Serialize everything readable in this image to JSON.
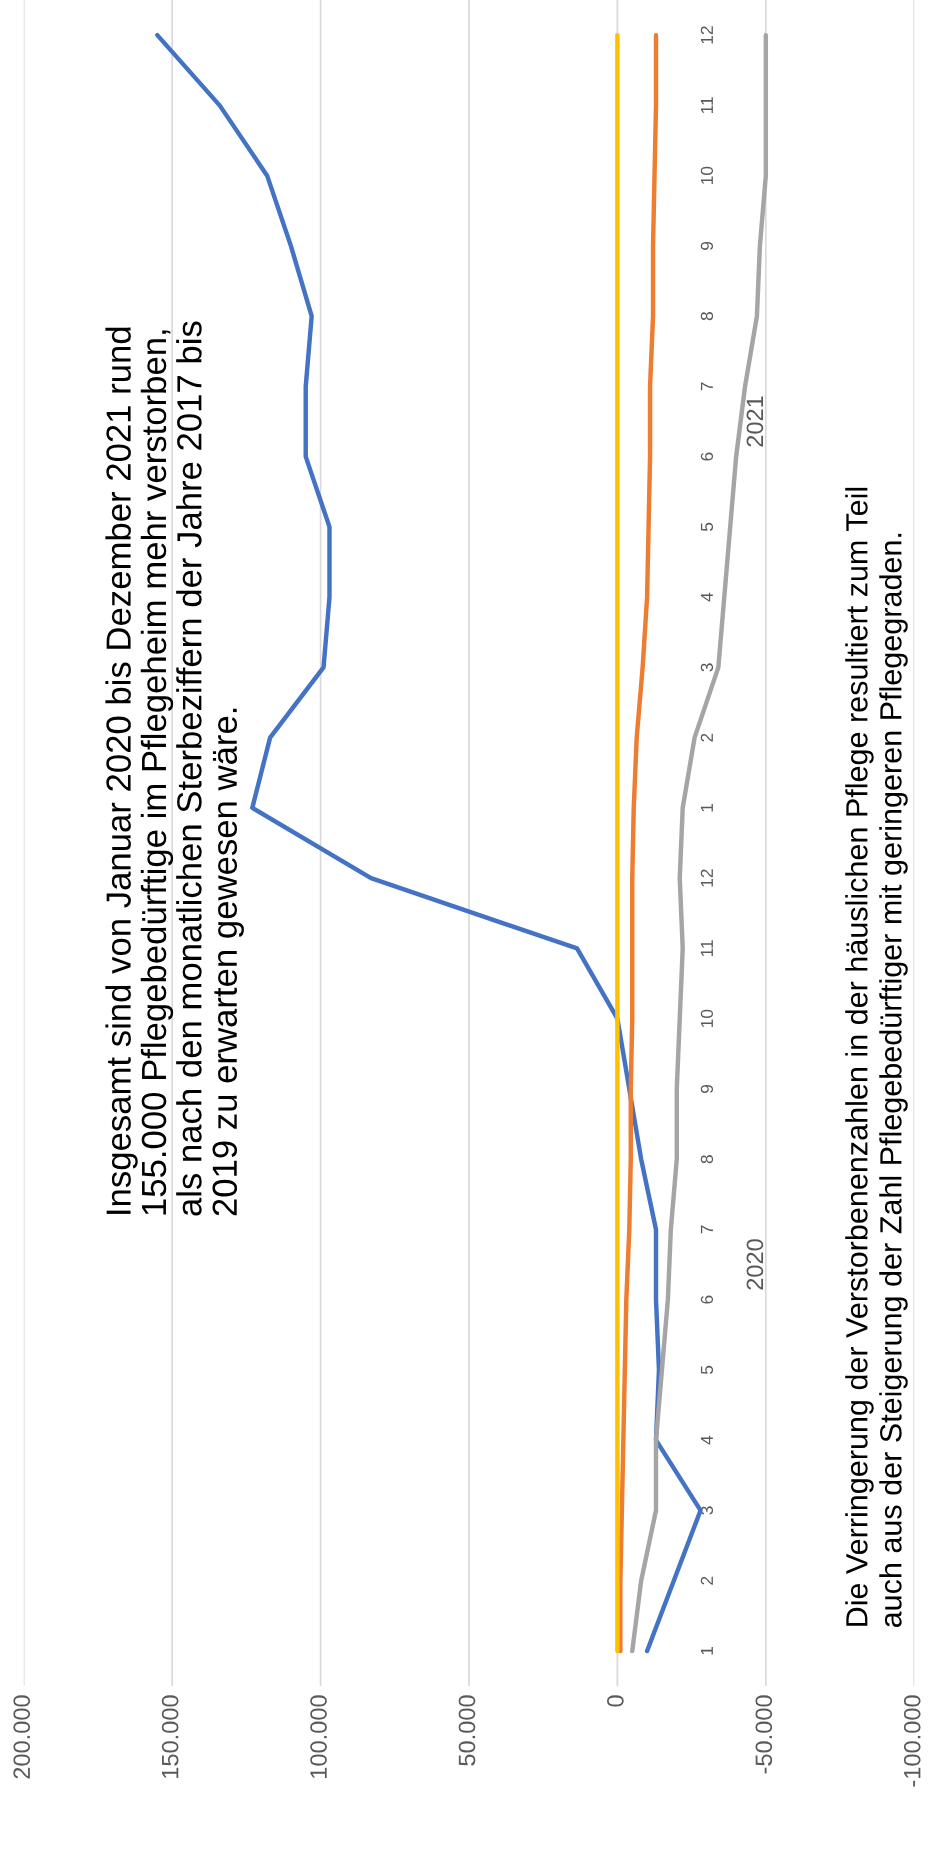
{
  "chart_data": {
    "type": "line",
    "orientation": "horizontal",
    "categories": [
      "12",
      "11",
      "10",
      "9",
      "8",
      "7",
      "6",
      "5",
      "4",
      "3",
      "2",
      "1",
      "12",
      "11",
      "10",
      "9",
      "8",
      "7",
      "6",
      "5",
      "4",
      "3",
      "2",
      "1"
    ],
    "series": [
      {
        "color": "#4472c4",
        "values": [
          155000,
          134000,
          118000,
          110000,
          103000,
          105000,
          105000,
          97000,
          97000,
          99000,
          117000,
          123000,
          83000,
          13600,
          0,
          -4000,
          -8000,
          -13000,
          -13000,
          -14000,
          -13000,
          -28000,
          -19000,
          -10000
        ]
      },
      {
        "color": "#ed7d31",
        "values": [
          -13000,
          -13000,
          -12500,
          -12000,
          -12000,
          -11000,
          -11000,
          -10500,
          -10000,
          -8500,
          -6500,
          -5500,
          -5000,
          -5000,
          -5000,
          -4500,
          -4500,
          -4000,
          -3000,
          -2500,
          -2000,
          -1500,
          -1000,
          -1000
        ]
      },
      {
        "color": "#a5a5a5",
        "values": [
          -50000,
          -50000,
          -50000,
          -48000,
          -47000,
          -43000,
          -40000,
          -38000,
          -36000,
          -34000,
          -26000,
          -22000,
          -21000,
          -22000,
          -21000,
          -20000,
          -20000,
          -18000,
          -17000,
          -15000,
          -13000,
          -13000,
          -8000,
          -5000
        ]
      },
      {
        "color": "#ffc000",
        "values": [
          0,
          0,
          0,
          0,
          0,
          0,
          0,
          0,
          0,
          0,
          0,
          0,
          0,
          0,
          0,
          0,
          0,
          0,
          0,
          0,
          0,
          0,
          0,
          0
        ]
      }
    ],
    "xlim": [
      200000,
      -100000
    ],
    "xticks": [
      {
        "value": 200000,
        "label": "200.000"
      },
      {
        "value": 150000,
        "label": "150.000"
      },
      {
        "value": 100000,
        "label": "100.000"
      },
      {
        "value": 50000,
        "label": "50.000"
      },
      0,
      {
        "value": -50000,
        "label": "-50.000"
      },
      {
        "value": -100000,
        "label": "-100.000"
      }
    ],
    "grid": "x",
    "marker": "none",
    "line_style": "solid",
    "annotations": [
      "Insgesamt sind von Januar 2020 bis Dezember 2021 rund\n155.000 Pflegebedürftige im Pflegeheim mehr verstorben,\nals nach den monatlichen Sterbeziffern der Jahre 2017 bis\n2019 zu erwarten gewesen wäre.",
      "Die Verringerung der Verstorbenenzahlen in der häuslichen Pflege resultiert zum Teil\nauch aus der Steigerung der Zahl Pflegebedürftiger mit geringeren Pflegegraden.",
      "2021",
      "2020"
    ]
  }
}
